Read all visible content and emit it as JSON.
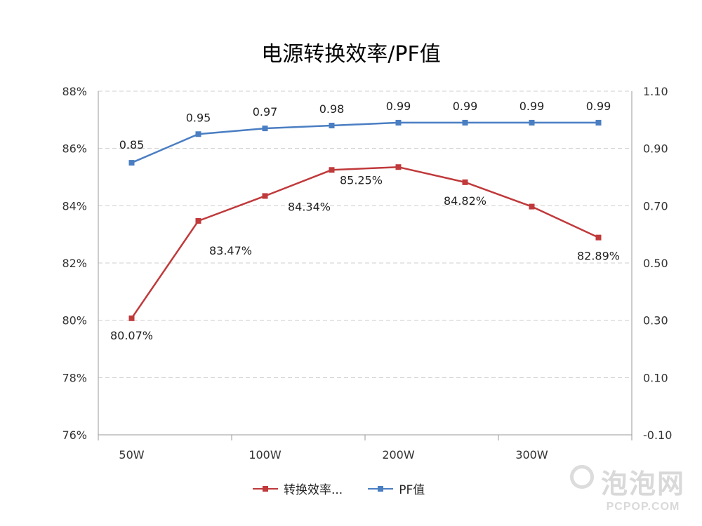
{
  "title": "电源转换效率/PF值",
  "chart_data": {
    "type": "line",
    "categories": [
      "50W",
      "",
      "100W",
      "",
      "200W",
      "",
      "300W",
      ""
    ],
    "x_tick_labels": [
      "50W",
      "100W",
      "200W",
      "300W"
    ],
    "series": [
      {
        "name": "转换效率...",
        "axis": "left",
        "color": "#c0393b",
        "values": [
          80.07,
          83.47,
          84.34,
          85.25,
          85.35,
          84.82,
          83.97,
          82.89
        ],
        "labels": [
          "80.07%",
          "83.47%",
          "84.34%",
          "85.25%",
          "",
          "84.82%",
          "",
          "82.89%"
        ]
      },
      {
        "name": "PF值",
        "axis": "right",
        "color": "#4a7ec2",
        "values": [
          0.85,
          0.95,
          0.97,
          0.98,
          0.99,
          0.99,
          0.99,
          0.99
        ],
        "labels": [
          "0.85",
          "0.95",
          "0.97",
          "0.98",
          "0.99",
          "0.99",
          "0.99",
          "0.99"
        ]
      }
    ],
    "y_left": {
      "ylim": [
        76,
        88
      ],
      "ticks": [
        "76%",
        "78%",
        "80%",
        "82%",
        "84%",
        "86%",
        "88%"
      ]
    },
    "y_right": {
      "ylim": [
        -0.1,
        1.1
      ],
      "ticks": [
        "-0.10",
        "0.10",
        "0.30",
        "0.50",
        "0.70",
        "0.90",
        "1.10"
      ]
    },
    "grid": true,
    "legend": "bottom"
  },
  "watermark": {
    "main": "泡泡网",
    "sub": "PCPOP.COM"
  }
}
